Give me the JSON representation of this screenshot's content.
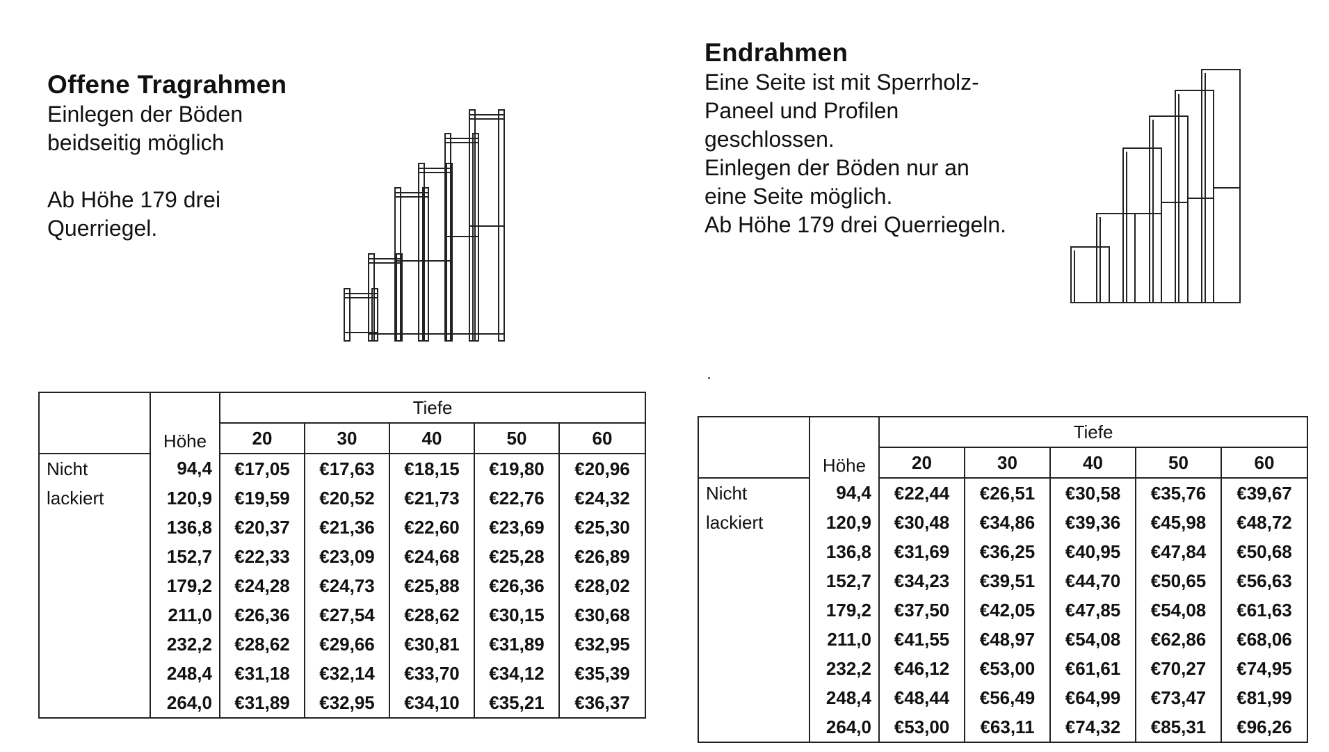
{
  "open_frame": {
    "title": "Offene Tragrahmen",
    "desc1": "Einlegen der Böden\nbeidseitig möglich",
    "desc2": "Ab Höhe 179 drei\nQuerriegel.",
    "table": {
      "hoehe_label": "Höhe",
      "tiefe_label": "Tiefe",
      "depths": [
        "20",
        "30",
        "40",
        "50",
        "60"
      ],
      "row_label_1": "Nicht",
      "row_label_2": "lackiert",
      "rows": [
        {
          "h": "94,4",
          "p": [
            "€17,05",
            "€17,63",
            "€18,15",
            "€19,80",
            "€20,96"
          ]
        },
        {
          "h": "120,9",
          "p": [
            "€19,59",
            "€20,52",
            "€21,73",
            "€22,76",
            "€24,32"
          ]
        },
        {
          "h": "136,8",
          "p": [
            "€20,37",
            "€21,36",
            "€22,60",
            "€23,69",
            "€25,30"
          ]
        },
        {
          "h": "152,7",
          "p": [
            "€22,33",
            "€23,09",
            "€24,68",
            "€25,28",
            "€26,89"
          ]
        },
        {
          "h": "179,2",
          "p": [
            "€24,28",
            "€24,73",
            "€25,88",
            "€26,36",
            "€28,02"
          ]
        },
        {
          "h": "211,0",
          "p": [
            "€26,36",
            "€27,54",
            "€28,62",
            "€30,15",
            "€30,68"
          ]
        },
        {
          "h": "232,2",
          "p": [
            "€28,62",
            "€29,66",
            "€30,81",
            "€31,89",
            "€32,95"
          ]
        },
        {
          "h": "248,4",
          "p": [
            "€31,18",
            "€32,14",
            "€33,70",
            "€34,12",
            "€35,39"
          ]
        },
        {
          "h": "264,0",
          "p": [
            "€31,89",
            "€32,95",
            "€34,10",
            "€35,21",
            "€36,37"
          ]
        }
      ]
    }
  },
  "end_frame": {
    "title": "Endrahmen",
    "desc": "Eine Seite ist mit Sperrholz-\nPaneel und Profilen\ngeschlossen.\nEinlegen der Böden nur an\neine Seite möglich.\nAb Höhe 179 drei Querriegeln.",
    "table": {
      "hoehe_label": "Höhe",
      "tiefe_label": "Tiefe",
      "depths": [
        "20",
        "30",
        "40",
        "50",
        "60"
      ],
      "row_label_1": "Nicht",
      "row_label_2": "lackiert",
      "rows": [
        {
          "h": "94,4",
          "p": [
            "€22,44",
            "€26,51",
            "€30,58",
            "€35,76",
            "€39,67"
          ]
        },
        {
          "h": "120,9",
          "p": [
            "€30,48",
            "€34,86",
            "€39,36",
            "€45,98",
            "€48,72"
          ]
        },
        {
          "h": "136,8",
          "p": [
            "€31,69",
            "€36,25",
            "€40,95",
            "€47,84",
            "€50,68"
          ]
        },
        {
          "h": "152,7",
          "p": [
            "€34,23",
            "€39,51",
            "€44,70",
            "€50,65",
            "€56,63"
          ]
        },
        {
          "h": "179,2",
          "p": [
            "€37,50",
            "€42,05",
            "€47,85",
            "€54,08",
            "€61,63"
          ]
        },
        {
          "h": "211,0",
          "p": [
            "€41,55",
            "€48,97",
            "€54,08",
            "€62,86",
            "€68,06"
          ]
        },
        {
          "h": "232,2",
          "p": [
            "€46,12",
            "€53,00",
            "€61,61",
            "€70,27",
            "€74,95"
          ]
        },
        {
          "h": "248,4",
          "p": [
            "€48,44",
            "€56,49",
            "€64,99",
            "€73,47",
            "€81,99"
          ]
        },
        {
          "h": "264,0",
          "p": [
            "€53,00",
            "€63,11",
            "€74,32",
            "€85,31",
            "€96,26"
          ]
        }
      ]
    }
  }
}
